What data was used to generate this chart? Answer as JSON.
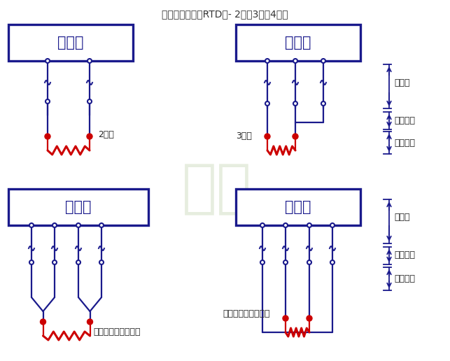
{
  "title": "热电阻传感器（RTD）- 2线、3线、4线制",
  "bg_color": "#ffffff",
  "box_color": "#1a1a8c",
  "line_color": "#1a1a8c",
  "red_color": "#cc0000",
  "label_2wire": "2线制",
  "label_3wire": "3线制",
  "label_4wire_with": "四线制有配对端子线",
  "label_4wire_without": "四线制没有补偿回路",
  "label_copper": "铜导线",
  "label_internal": "内部导线",
  "label_resistor": "电阻元件",
  "transmitter_text": "变送器",
  "figw": 6.43,
  "figh": 5.16,
  "dpi": 100
}
